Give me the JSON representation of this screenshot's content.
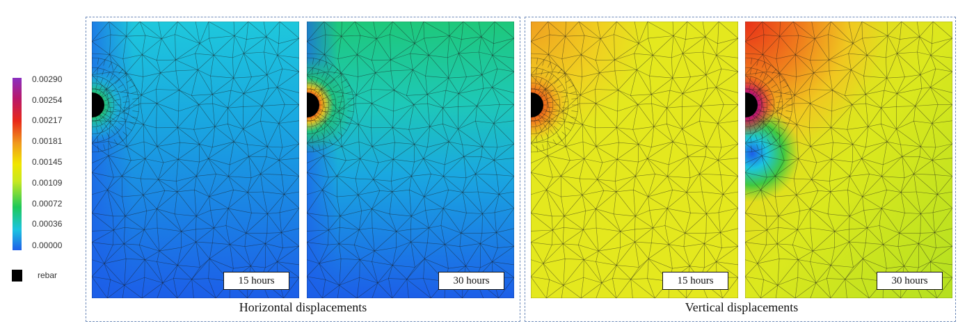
{
  "legend": {
    "values": [
      "0.00290",
      "0.00254",
      "0.00217",
      "0.00181",
      "0.00145",
      "0.00109",
      "0.00072",
      "0.00036",
      "0.00000"
    ],
    "colors": [
      "#1f5fe8",
      "#1cc4e0",
      "#1ec85a",
      "#c8e820",
      "#f0e600",
      "#f09a1c",
      "#e82818",
      "#b8186a",
      "#8a30c0"
    ],
    "rebar_label": "rebar",
    "rebar_color": "#000000"
  },
  "groups": [
    {
      "caption": "Horizontal displacements",
      "border_color": "#6a88b8"
    },
    {
      "caption": "Vertical displacements",
      "border_color": "#6a88b8"
    }
  ],
  "panels": [
    {
      "time": "15 hours",
      "field": "horizontal",
      "mesh_color": "#1a1a1a"
    },
    {
      "time": "30 hours",
      "field": "horizontal",
      "mesh_color": "#1a1a1a"
    },
    {
      "time": "15 hours",
      "field": "vertical",
      "mesh_color": "#1a1a1a"
    },
    {
      "time": "30 hours",
      "field": "vertical",
      "mesh_color": "#1a1a1a"
    }
  ]
}
